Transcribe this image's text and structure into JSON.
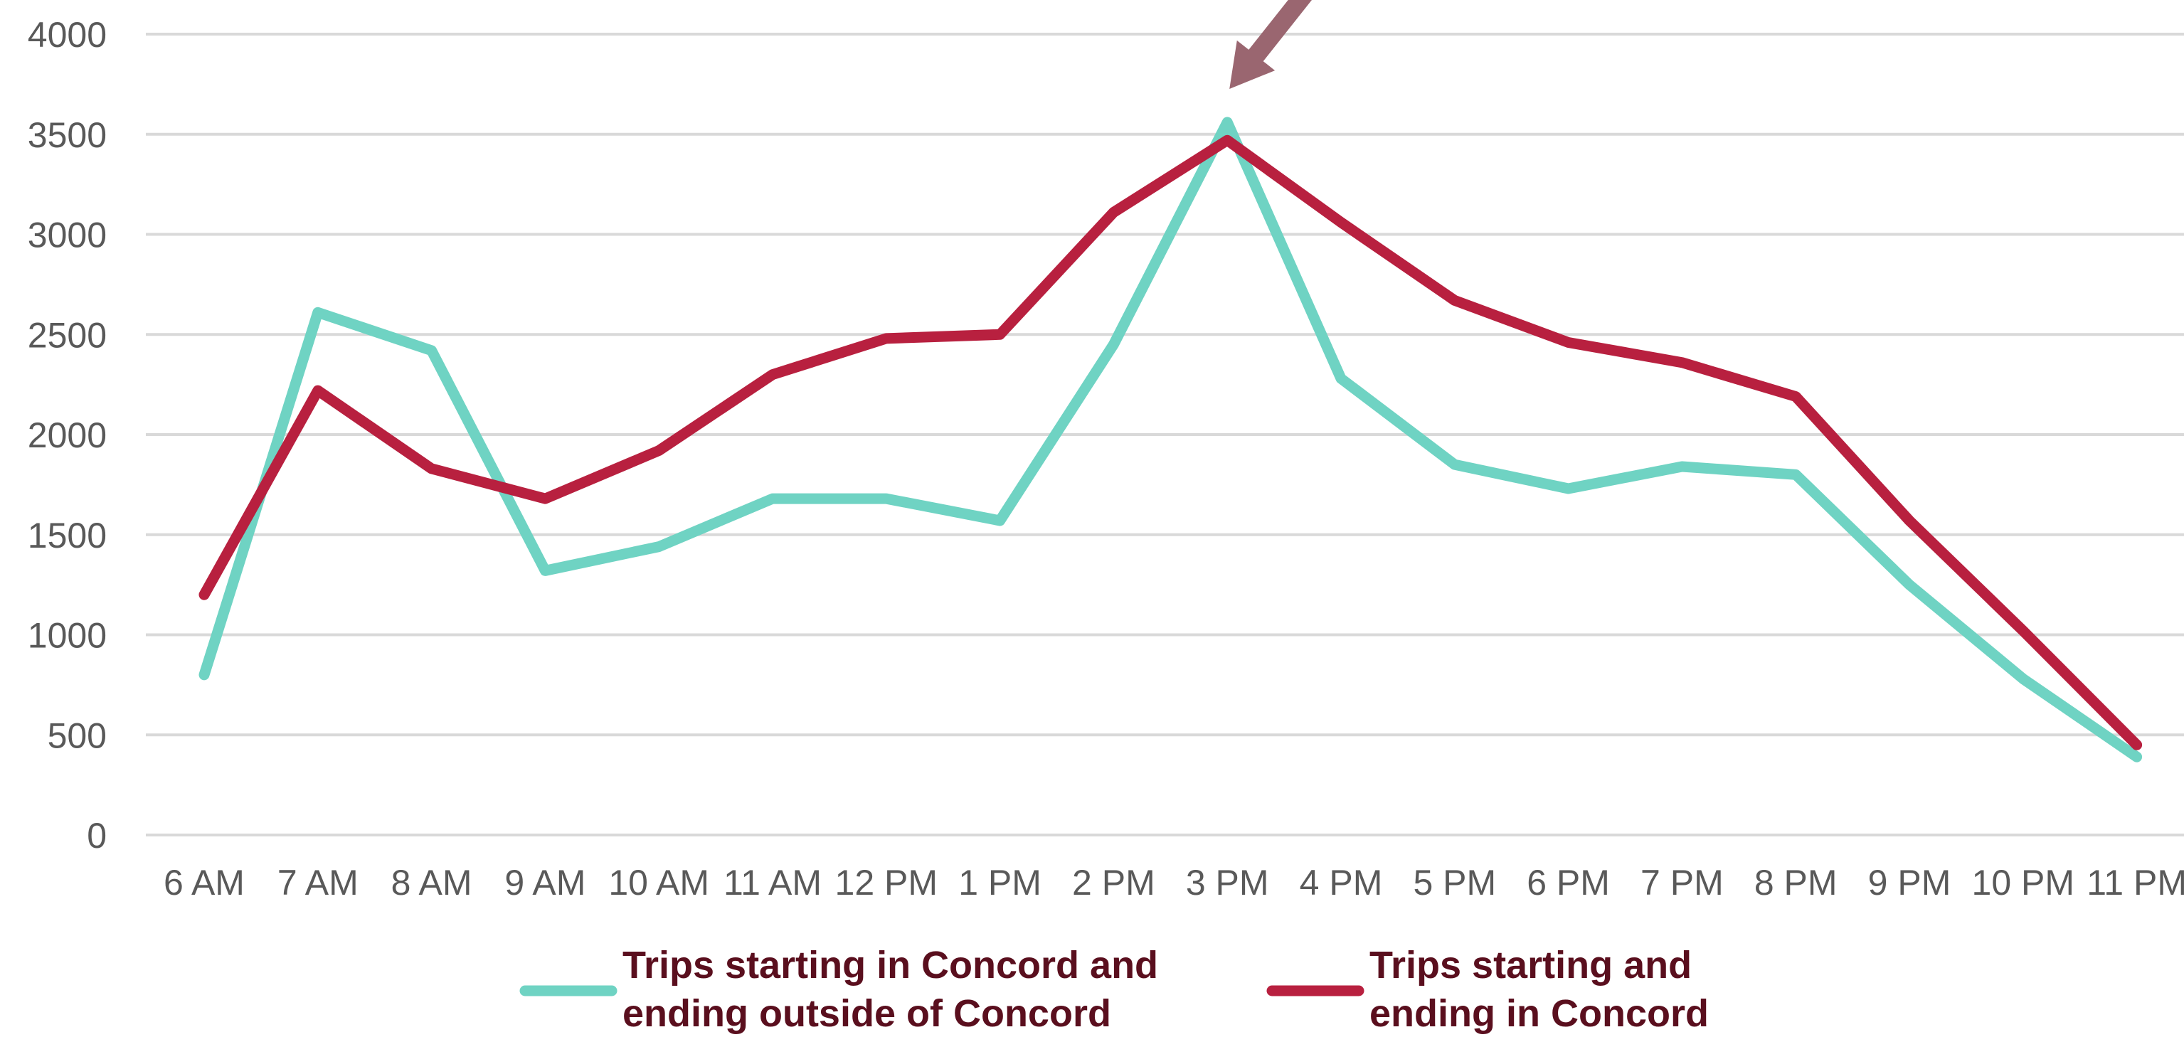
{
  "chart_data": {
    "type": "line",
    "title": "",
    "xlabel": "",
    "ylabel": "",
    "categories": [
      "6 AM",
      "7 AM",
      "8 AM",
      "9 AM",
      "10 AM",
      "11 AM",
      "12 PM",
      "1 PM",
      "2 PM",
      "3 PM",
      "4 PM",
      "5 PM",
      "6 PM",
      "7 PM",
      "8 PM",
      "9 PM",
      "10 PM",
      "11 PM"
    ],
    "ylim": [
      0,
      4000
    ],
    "yticks": [
      "0",
      "500",
      "1000",
      "1500",
      "2000",
      "2500",
      "3000",
      "3500",
      "4000"
    ],
    "grid": true,
    "legend_position": "bottom",
    "series": [
      {
        "name": "Trips starting in Concord and ending outside of Concord",
        "legend_lines": [
          "Trips starting in Concord and",
          "ending outside of Concord"
        ],
        "color": "#6fd3c3",
        "values": [
          800,
          2610,
          2420,
          1320,
          1440,
          1680,
          1680,
          1570,
          2450,
          3560,
          2280,
          1850,
          1730,
          1840,
          1800,
          1250,
          780,
          390
        ]
      },
      {
        "name": "Trips starting and ending in Concord",
        "legend_lines": [
          "Trips starting and",
          "ending in Concord"
        ],
        "color": "#b8203f",
        "values": [
          1200,
          2220,
          1830,
          1680,
          1920,
          2300,
          2480,
          2500,
          3110,
          3470,
          3060,
          2670,
          2460,
          2360,
          2190,
          1570,
          1020,
          450
        ]
      }
    ],
    "annotation_arrow": {
      "color": "#9a6670",
      "points_to": "3 PM"
    }
  }
}
